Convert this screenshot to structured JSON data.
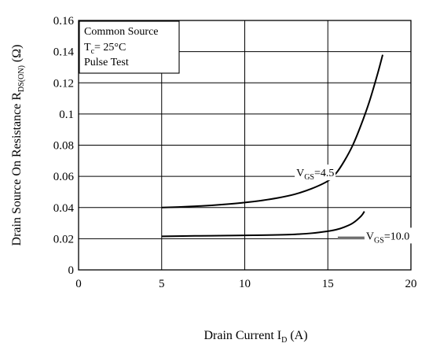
{
  "chart_data": {
    "type": "line",
    "xlabel": {
      "main": "Drain Current  I",
      "sub": "D",
      "unit": " (A)"
    },
    "ylabel": {
      "main": "Drain Source On Resistance  R",
      "sub": "DS(ON)",
      "unit": " (Ω)"
    },
    "xlim": [
      0,
      20
    ],
    "ylim": [
      0,
      0.16
    ],
    "x_ticks": [
      "0",
      "5",
      "10",
      "15",
      "20"
    ],
    "y_ticks": [
      "0",
      "0.02",
      "0.04",
      "0.06",
      "0.08",
      "0.1",
      "0.12",
      "0.14",
      "0.16"
    ],
    "grid": true,
    "conditions": {
      "line1": "Common Source",
      "line2_main": "T",
      "line2_sub": "c",
      "line2_rest": "= 25°C",
      "line3": "Pulse Test"
    },
    "series": [
      {
        "name_main": "V",
        "name_sub": "GS",
        "name_rest": "=4.5",
        "x": [
          5,
          6,
          7,
          8,
          9,
          10,
          11,
          12,
          13,
          14,
          15,
          15.5,
          16,
          16.5,
          17,
          17.5,
          18,
          18.3
        ],
        "y": [
          0.04,
          0.0403,
          0.0408,
          0.0414,
          0.0422,
          0.0432,
          0.0445,
          0.0462,
          0.0485,
          0.052,
          0.057,
          0.062,
          0.07,
          0.08,
          0.093,
          0.108,
          0.126,
          0.138
        ]
      },
      {
        "name_main": "V",
        "name_sub": "GS",
        "name_rest": "=10.0",
        "x": [
          5,
          7,
          9,
          11,
          13,
          14,
          15,
          15.5,
          16,
          16.5,
          17,
          17.2
        ],
        "y": [
          0.0215,
          0.0218,
          0.022,
          0.0223,
          0.0228,
          0.0235,
          0.0248,
          0.0258,
          0.0275,
          0.03,
          0.0345,
          0.0375
        ]
      }
    ]
  }
}
